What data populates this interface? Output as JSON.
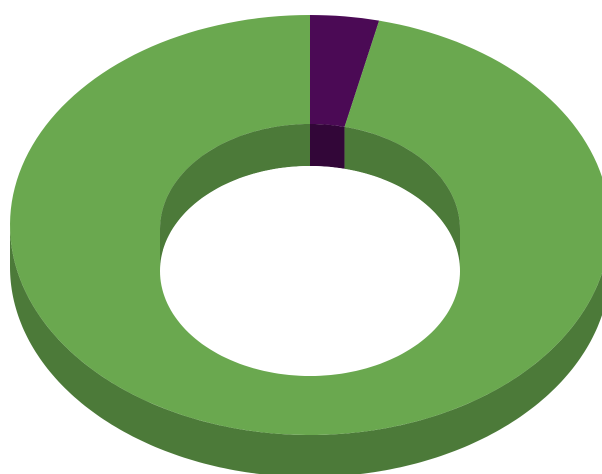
{
  "chart_data": {
    "type": "pie",
    "variant": "3d-doughnut",
    "title": "",
    "legend": "none",
    "start_angle_deg": 0,
    "direction": "clockwise",
    "slices": [
      {
        "value": 3.7,
        "color": "#4b0a55",
        "side_color": "#320638"
      },
      {
        "value": 96.3,
        "color": "#6aa84f",
        "side_color": "#4c7a39"
      }
    ]
  }
}
